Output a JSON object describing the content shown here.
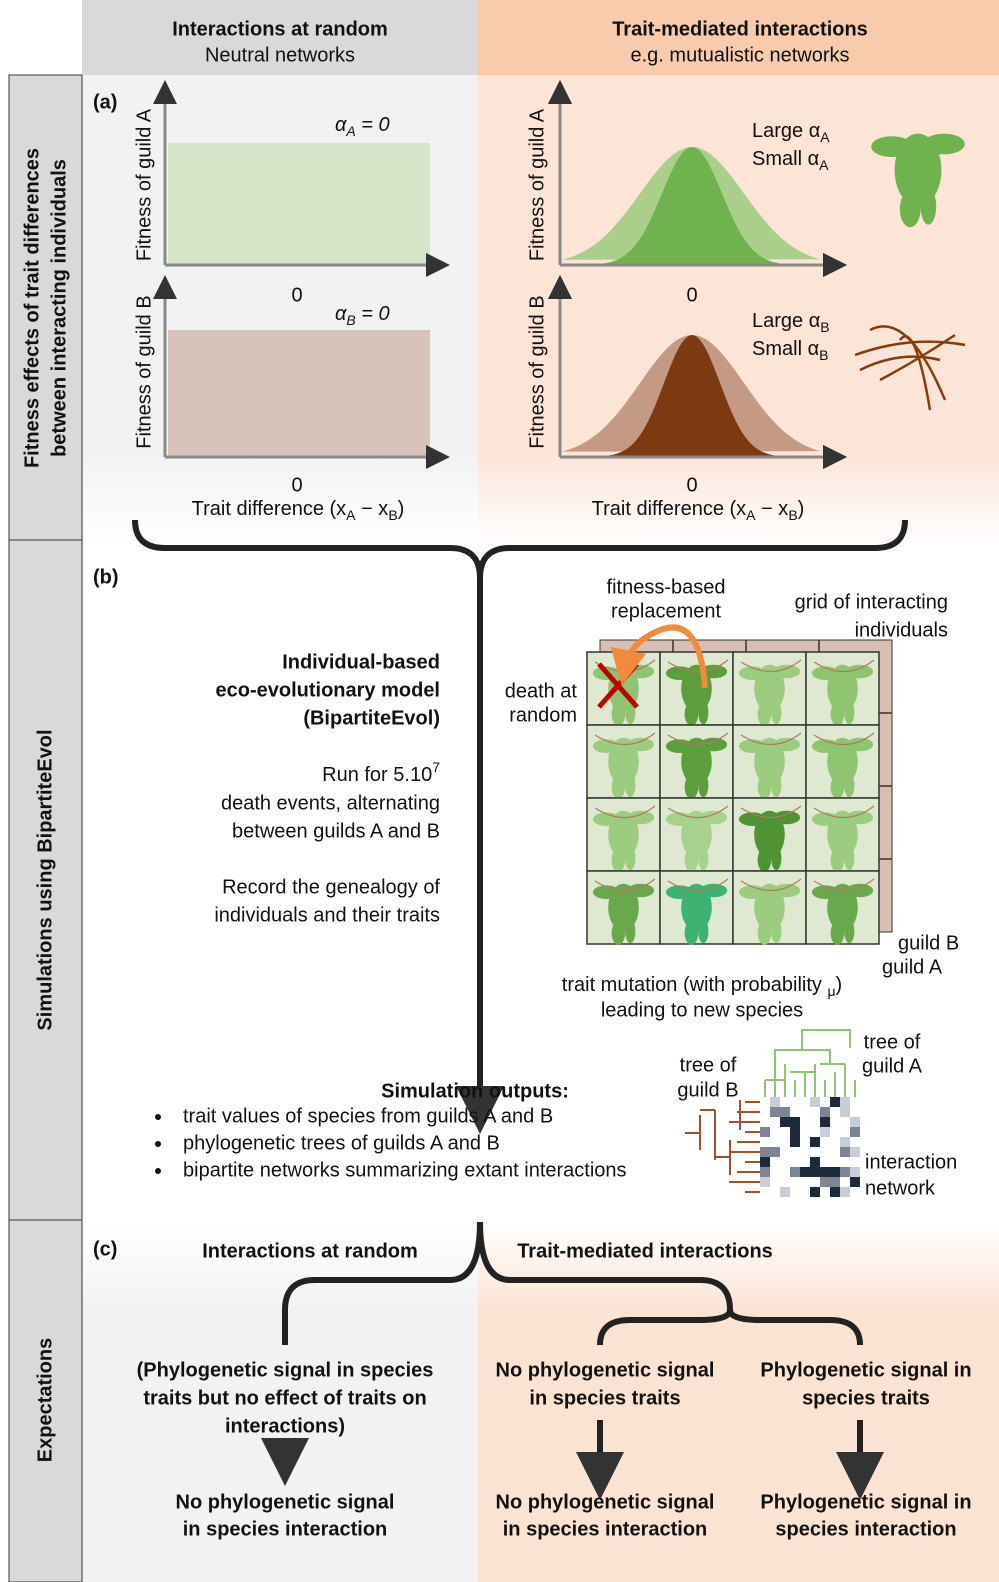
{
  "header": {
    "left": {
      "title": "Interactions at random",
      "subtitle": "Neutral networks"
    },
    "right": {
      "title": "Trait-mediated interactions",
      "subtitle": "e.g. mutualistic networks"
    }
  },
  "side_labels": {
    "fitness": [
      "Fitness effects of trait differences",
      "between interacting individuals"
    ],
    "simulations": "Simulations using BipartiteEvol",
    "expectations": "Expectations"
  },
  "panel_a": {
    "label": "(a)",
    "left": {
      "y_label_a": "Fitness of guild A",
      "y_label_b": "Fitness of guild B",
      "zero_a": "0",
      "zero_b": "0",
      "alpha_a": [
        "α",
        "A",
        " = 0"
      ],
      "alpha_b": [
        "α",
        "B",
        " = 0"
      ],
      "x_label": [
        "Trait difference (x",
        "A",
        " − x",
        "B",
        ")"
      ]
    },
    "right": {
      "y_label_a": "Fitness of guild A",
      "y_label_b": "Fitness of guild B",
      "zero_a": "0",
      "zero_b": "0",
      "large_a": [
        "Large α",
        "A"
      ],
      "small_a": [
        "Small α",
        "A"
      ],
      "large_b": [
        "Large α",
        "B"
      ],
      "small_b": [
        "Small α",
        "B"
      ],
      "x_label": [
        "Trait difference (x",
        "A",
        " − x",
        "B",
        ")"
      ]
    }
  },
  "panel_b": {
    "label": "(b)",
    "model_title": [
      "Individual-based",
      "eco-evolutionary model",
      "(BipartiteEvol)"
    ],
    "run": [
      [
        "Run for 5.10",
        "7"
      ],
      "death events, alternating",
      "between guilds A and B"
    ],
    "record": [
      "Record the genealogy of",
      "individuals and their traits"
    ],
    "fitness_replacement": [
      "fitness-based",
      "replacement"
    ],
    "grid_label": [
      "grid of interacting",
      "individuals"
    ],
    "death": [
      "death at",
      "random"
    ],
    "guild_b": "guild B",
    "guild_a": "guild A",
    "mutation": [
      [
        "trait mutation (with probability ",
        "μ",
        ")"
      ],
      "leading to new species"
    ],
    "tree_a": [
      "tree of",
      "guild A"
    ],
    "tree_b": [
      "tree of",
      "guild B"
    ],
    "network": [
      "interaction",
      "network"
    ],
    "outputs_title": "Simulation outputs:",
    "outputs": [
      "trait values of species from guilds A and B",
      "phylogenetic trees of guilds A and B",
      "bipartite networks summarizing extant interactions"
    ]
  },
  "panel_c": {
    "label": "(c)",
    "left_title": "Interactions at random",
    "right_title": "Trait-mediated interactions",
    "conditions": [
      [
        "(Phylogenetic signal in species",
        "traits but no effect of traits on",
        "interactions)"
      ],
      [
        "No phylogenetic signal",
        "in species traits"
      ],
      [
        "Phylogenetic signal in",
        "species traits"
      ]
    ],
    "outcomes": [
      [
        "No phylogenetic signal",
        "in species interaction"
      ],
      [
        "No phylogenetic signal",
        "in species interaction"
      ],
      [
        "Phylogenetic signal in",
        "species interaction"
      ]
    ]
  }
}
